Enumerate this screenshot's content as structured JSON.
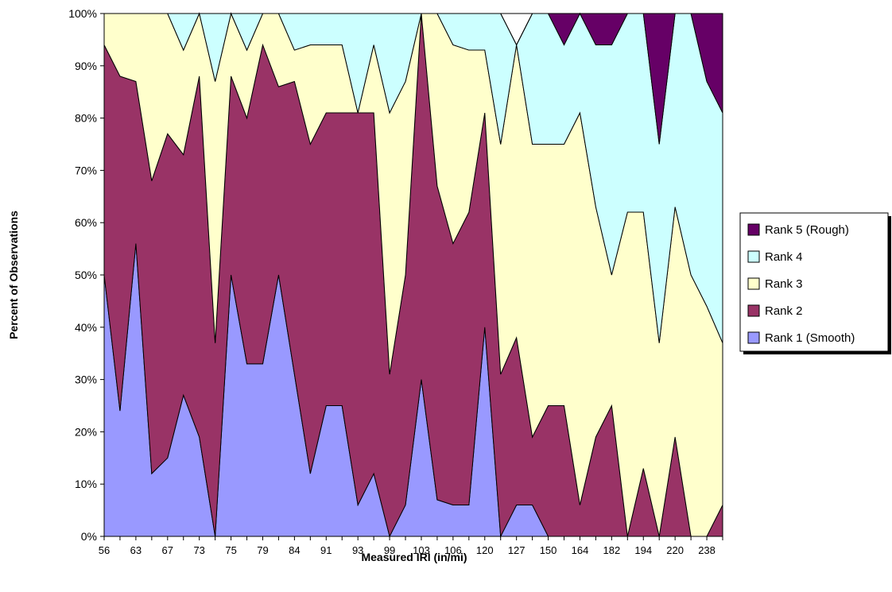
{
  "chart_data": {
    "type": "area",
    "stacked": "percent",
    "xlabel": "Measured IRI (in/mi)",
    "ylabel": "Percent of Observations",
    "ylim": [
      0,
      100
    ],
    "ytick_labels": [
      "0%",
      "10%",
      "20%",
      "30%",
      "40%",
      "50%",
      "60%",
      "70%",
      "80%",
      "90%",
      "100%"
    ],
    "x_tick_labels": [
      "56",
      "63",
      "67",
      "73",
      "75",
      "79",
      "84",
      "91",
      "93",
      "99",
      "103",
      "106",
      "120",
      "127",
      "150",
      "164",
      "182",
      "194",
      "220",
      "238"
    ],
    "point_count": 40,
    "legend_position": "right",
    "grid": false,
    "colors": {
      "Rank 1 (Smooth)": "#9999ff",
      "Rank 2": "#993366",
      "Rank 3": "#ffffcc",
      "Rank 4": "#ccffff",
      "Rank 5 (Rough)": "#660066"
    },
    "series": [
      {
        "name": "Rank 1 (Smooth)",
        "values": [
          50,
          24,
          56,
          12,
          15,
          27,
          19,
          0,
          50,
          33,
          33,
          50,
          31,
          12,
          25,
          25,
          6,
          12,
          0,
          6,
          30,
          7,
          6,
          6,
          40,
          0,
          6,
          6,
          0,
          0,
          0,
          0,
          0,
          0,
          0,
          0,
          0,
          0,
          0,
          0
        ]
      },
      {
        "name": "Rank 2",
        "values": [
          44,
          64,
          31,
          56,
          62,
          46,
          69,
          37,
          38,
          47,
          61,
          36,
          56,
          63,
          56,
          56,
          75,
          69,
          31,
          44,
          70,
          60,
          50,
          56,
          41,
          31,
          32,
          13,
          25,
          25,
          6,
          19,
          25,
          0,
          13,
          0,
          19,
          0,
          0,
          6
        ]
      },
      {
        "name": "Rank 3",
        "values": [
          6,
          12,
          13,
          32,
          23,
          20,
          12,
          50,
          12,
          13,
          6,
          14,
          6,
          19,
          13,
          13,
          0,
          13,
          50,
          37,
          0,
          33,
          38,
          31,
          12,
          44,
          56,
          56,
          50,
          50,
          75,
          44,
          25,
          62,
          49,
          37,
          44,
          50,
          44,
          31
        ]
      },
      {
        "name": "Rank 4",
        "values": [
          0,
          0,
          0,
          0,
          0,
          7,
          0,
          13,
          0,
          7,
          0,
          0,
          7,
          6,
          6,
          6,
          19,
          6,
          19,
          13,
          0,
          0,
          6,
          7,
          7,
          25,
          0,
          25,
          25,
          19,
          19,
          31,
          44,
          38,
          38,
          38,
          37,
          50,
          43,
          44
        ]
      },
      {
        "name": "Rank 5 (Rough)",
        "values": [
          0,
          0,
          0,
          0,
          0,
          0,
          0,
          0,
          0,
          0,
          0,
          0,
          0,
          0,
          0,
          0,
          0,
          0,
          0,
          0,
          0,
          0,
          0,
          0,
          0,
          0,
          0,
          0,
          0,
          6,
          0,
          6,
          6,
          0,
          0,
          25,
          0,
          0,
          13,
          19
        ]
      }
    ]
  }
}
